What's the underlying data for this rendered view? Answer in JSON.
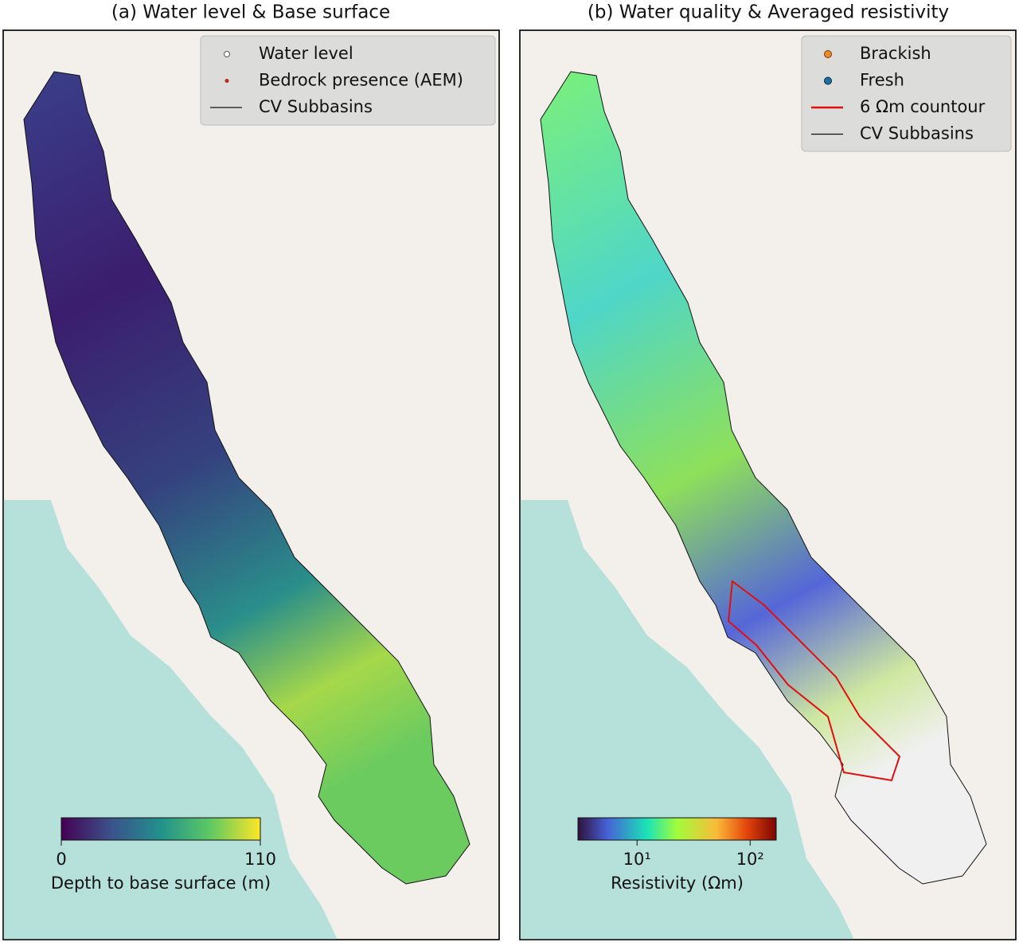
{
  "panels": [
    {
      "title": "(a) Water level & Base surface",
      "legend": [
        "Water level",
        "Bedrock presence (AEM)",
        "CV Subbasins"
      ],
      "colorbar": {
        "label": "Depth to base surface (m)",
        "scale": "linear",
        "range": [
          0,
          110
        ],
        "ticks": [
          0,
          110
        ]
      }
    },
    {
      "title": "(b) Water quality & Averaged resistivity",
      "legend": [
        "Brackish",
        "Fresh",
        "6 Ωm countour",
        "CV Subbasins"
      ],
      "colorbar": {
        "label": "Resistivity (Ωm)",
        "scale": "log",
        "range": [
          3,
          170
        ],
        "ticks": [
          {
            "value": 10,
            "label": "10¹"
          },
          {
            "value": 100,
            "label": "10²"
          }
        ]
      }
    }
  ]
}
